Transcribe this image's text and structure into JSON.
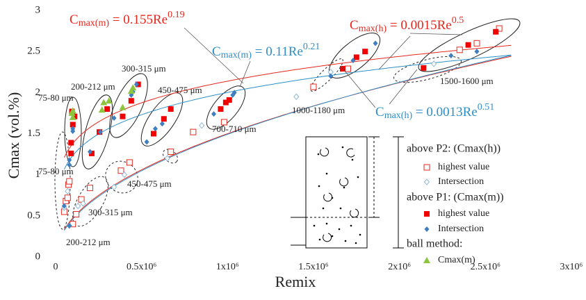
{
  "chart_data": {
    "type": "scatter",
    "x_label": "Remix",
    "y_label": "Cmax (vol.%)",
    "xlim": [
      0,
      3000000
    ],
    "ylim": [
      0,
      3
    ],
    "xticks": [
      0,
      {
        "value": 500000,
        "label": "0.5x10⁶"
      },
      {
        "value": 1000000,
        "label": "1x10⁶"
      },
      {
        "value": 1500000,
        "label": "1.5x10⁶"
      },
      {
        "value": 2000000,
        "label": "2x10⁶"
      },
      {
        "value": 2500000,
        "label": "2.5x10⁶"
      },
      {
        "value": 3000000,
        "label": "3x10⁶"
      }
    ],
    "yticks": [
      0,
      0.5,
      1,
      1.5,
      2,
      2.5,
      3
    ],
    "legend_groups": [
      "above P2: (Cmax(h))",
      "above P1: (Cmax(m))",
      "ball method:"
    ],
    "series": [
      {
        "name": "highest value",
        "color": "#e8271c",
        "marker": "square-open",
        "x": [
          50000,
          60000,
          70000,
          75000,
          80000,
          100000,
          120000,
          150000,
          200000,
          380000,
          430000,
          670000,
          800000,
          980000,
          1500000,
          1700000,
          2350000,
          2450000,
          2580000
        ],
        "values": [
          0.55,
          0.68,
          0.72,
          0.88,
          0.92,
          0.4,
          0.52,
          0.7,
          0.84,
          1.05,
          1.15,
          1.28,
          1.52,
          1.64,
          2.07,
          2.29,
          2.52,
          2.6,
          2.78
        ]
      },
      {
        "name": "Intersection",
        "color": "#8fb8d8",
        "marker": "diamond-open",
        "x": [
          50000,
          70000,
          80000,
          130000,
          160000,
          340000,
          400000,
          650000,
          850000,
          1400000,
          1600000,
          2200000
        ],
        "values": [
          0.6,
          0.8,
          0.38,
          0.62,
          0.65,
          0.85,
          1.0,
          1.2,
          1.6,
          1.95,
          2.25,
          2.35
        ]
      },
      {
        "name": "highest value",
        "color": "#f00000",
        "marker": "square",
        "x": [
          90000,
          90000,
          100000,
          110000,
          95000,
          210000,
          255000,
          300000,
          390000,
          440000,
          480000,
          570000,
          630000,
          670000,
          960000,
          990000,
          1010000,
          1670000,
          1750000,
          1800000,
          2140000,
          2400000,
          2560000
        ],
        "values": [
          1.26,
          1.39,
          1.61,
          1.71,
          1.77,
          1.26,
          1.52,
          1.8,
          1.71,
          1.9,
          2.1,
          1.5,
          1.68,
          1.8,
          1.8,
          1.88,
          1.91,
          2.29,
          2.43,
          2.5,
          2.3,
          2.58,
          2.74
        ]
      },
      {
        "name": "Intersection",
        "color": "#3f7fbf",
        "marker": "diamond",
        "x": [
          50000,
          80000,
          80000,
          80000,
          100000,
          100000,
          200000,
          260000,
          340000,
          440000,
          450000,
          470000,
          530000,
          580000,
          620000,
          920000,
          1030000,
          1040000,
          1600000,
          1730000,
          1860000,
          2300000,
          2450000
        ],
        "values": [
          0.62,
          0.38,
          1.12,
          1.18,
          1.53,
          1.56,
          1.28,
          1.52,
          1.69,
          1.97,
          2.01,
          2.1,
          1.4,
          1.56,
          1.62,
          1.74,
          1.97,
          2.0,
          2.2,
          2.39,
          2.6,
          2.45,
          2.5
        ]
      },
      {
        "name": "Cmax(m)",
        "color": "#8cc63f",
        "marker": "triangle",
        "x": [
          95000,
          100000,
          100000,
          270000,
          280000,
          310000,
          390000,
          440000,
          450000
        ],
        "values": [
          1.75,
          1.78,
          1.7,
          1.79,
          1.88,
          1.9,
          1.82,
          2.02,
          2.06
        ]
      }
    ],
    "equations": [
      {
        "c": "C",
        "sub": "max(m)",
        "mid": " = 0.155Re",
        "sup": "0.19",
        "color": "#e8271c"
      },
      {
        "c": "C",
        "sub": "max(m)",
        "mid": " = 0.11Re",
        "sup": "0.21",
        "color": "#2e8fc8"
      },
      {
        "c": "C",
        "sub": "max(h)",
        "mid": " = 0.0015Re",
        "sup": "0.5",
        "color": "#e8271c"
      },
      {
        "c": "C",
        "sub": "max(h)",
        "mid": " = 0.0013Re",
        "sup": "0.51",
        "color": "#2e8fc8"
      }
    ],
    "annotations": [
      "75-80 μm",
      "200-212 μm",
      "300-315 μm",
      "450-475 μm",
      "700-710 μm",
      "1000-1180 μm",
      "1500-1600 μm",
      "75-80 μm",
      "300-315 μm",
      "450-475 μm",
      "200-212 μm"
    ],
    "inset": {
      "p2": "P2",
      "p1": "P1",
      "upper": "Cmax(h)",
      "lower": "Cmax(m)"
    }
  }
}
